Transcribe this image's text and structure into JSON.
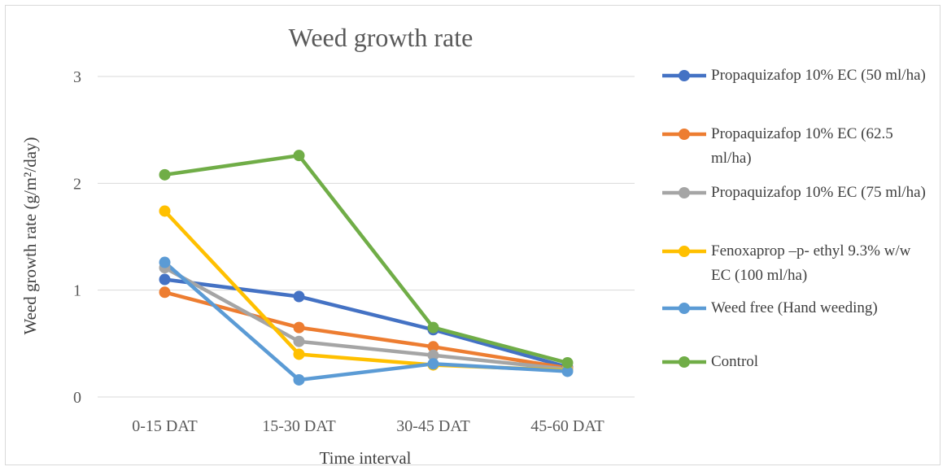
{
  "chart_data": {
    "type": "line",
    "title": "Weed growth rate",
    "xlabel": "Time interval",
    "ylabel": "Weed growth rate (g/m²/day)",
    "categories": [
      "0-15 DAT",
      "15-30 DAT",
      "30-45 DAT",
      "45-60 DAT"
    ],
    "ylim": [
      0,
      3
    ],
    "yticks": [
      "0",
      "1",
      "2",
      "3"
    ],
    "grid": true,
    "legend_position": "right",
    "series": [
      {
        "name": "Propaquizafop 10% EC (50 ml/ha)",
        "color": "#4472C4",
        "values": [
          1.1,
          0.94,
          0.63,
          0.28
        ]
      },
      {
        "name": "Propaquizafop 10% EC (62.5 ml/ha)",
        "color": "#ED7D31",
        "values": [
          0.98,
          0.65,
          0.47,
          0.27
        ]
      },
      {
        "name": "Propaquizafop 10% EC (75 ml/ha)",
        "color": "#A5A5A5",
        "values": [
          1.21,
          0.52,
          0.39,
          0.26
        ]
      },
      {
        "name": "Fenoxaprop –p- ethyl 9.3% w/w EC (100 ml/ha)",
        "color": "#FFC000",
        "values": [
          1.74,
          0.4,
          0.3,
          0.25
        ]
      },
      {
        "name": "Weed free (Hand weeding)",
        "color": "#5B9BD5",
        "values": [
          1.26,
          0.16,
          0.31,
          0.24
        ]
      },
      {
        "name": "Control",
        "color": "#70AD47",
        "values": [
          2.08,
          2.26,
          0.65,
          0.32
        ]
      }
    ]
  }
}
